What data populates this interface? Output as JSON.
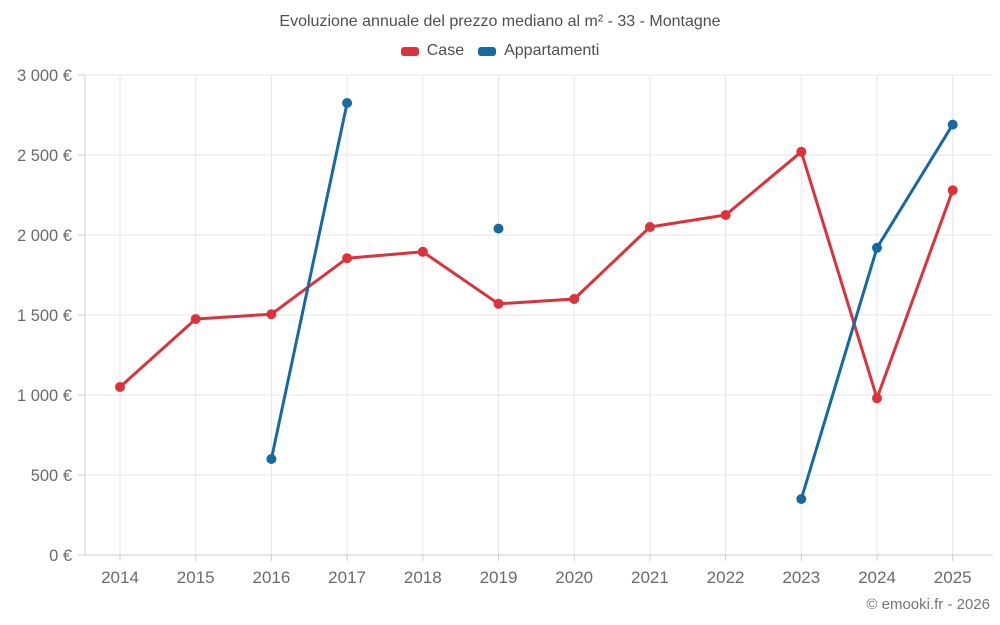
{
  "chart": {
    "title": "Evoluzione annuale del prezzo mediano al m² - 33 - Montagne",
    "copyright": "© emooki.fr - 2026"
  },
  "chart_data": {
    "type": "line",
    "title": "Evoluzione annuale del prezzo mediano al m² - 33 - Montagne",
    "categories": [
      "2014",
      "2015",
      "2016",
      "2017",
      "2018",
      "2019",
      "2020",
      "2021",
      "2022",
      "2023",
      "2024",
      "2025"
    ],
    "series": [
      {
        "name": "Case",
        "color": "#dc323c",
        "values": [
          1050,
          1475,
          1505,
          1855,
          1895,
          1570,
          1600,
          2050,
          2125,
          2520,
          980,
          2280
        ]
      },
      {
        "name": "Appartamenti",
        "color": "#1769a2",
        "values": [
          null,
          null,
          600,
          2825,
          null,
          2040,
          null,
          null,
          null,
          350,
          1920,
          2690
        ]
      }
    ],
    "ylabel": "",
    "xlabel": "",
    "ylim": [
      0,
      3000
    ],
    "y_tick_step": 500,
    "y_tick_labels": [
      "0 €",
      "500 €",
      "1 000 €",
      "1 500 €",
      "2 000 €",
      "2 500 €",
      "3 000 €"
    ],
    "grid": true,
    "legend_position": "top"
  }
}
